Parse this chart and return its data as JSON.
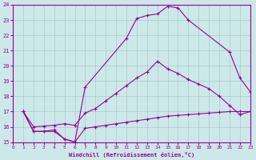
{
  "xlabel": "Windchill (Refroidissement éolien,°C)",
  "bg_color": "#cce8e8",
  "line_color": "#990099",
  "grid_color": "#aacccc",
  "xlim": [
    0,
    23
  ],
  "ylim": [
    15,
    24
  ],
  "xticks": [
    0,
    1,
    2,
    3,
    4,
    5,
    6,
    7,
    8,
    9,
    10,
    11,
    12,
    13,
    14,
    15,
    16,
    17,
    18,
    19,
    20,
    21,
    22,
    23
  ],
  "yticks": [
    15,
    16,
    17,
    18,
    19,
    20,
    21,
    22,
    23,
    24
  ],
  "line1_x": [
    1,
    2,
    3,
    4,
    5,
    6,
    7,
    11,
    12,
    13,
    14,
    15,
    16,
    17,
    21,
    22,
    23
  ],
  "line1_y": [
    17.0,
    15.7,
    15.7,
    15.8,
    15.2,
    15.0,
    18.6,
    21.8,
    23.1,
    23.3,
    23.4,
    23.9,
    23.8,
    23.0,
    20.9,
    19.2,
    18.3
  ],
  "line2_x": [
    1,
    2,
    3,
    4,
    5,
    6,
    7,
    8,
    9,
    10,
    11,
    12,
    13,
    14,
    15,
    16,
    17,
    18,
    19,
    20,
    21,
    22,
    23
  ],
  "line2_y": [
    17.0,
    16.0,
    16.05,
    16.1,
    16.2,
    16.1,
    16.9,
    17.2,
    17.7,
    18.2,
    18.7,
    19.2,
    19.6,
    20.3,
    19.8,
    19.5,
    19.1,
    18.8,
    18.5,
    18.0,
    17.4,
    16.8,
    17.0
  ],
  "line3_x": [
    1,
    2,
    3,
    4,
    5,
    6,
    7,
    8,
    9,
    10,
    11,
    12,
    13,
    14,
    15,
    16,
    17,
    18,
    19,
    20,
    21,
    22,
    23
  ],
  "line3_y": [
    17.0,
    15.7,
    15.7,
    15.7,
    15.2,
    15.0,
    15.9,
    16.0,
    16.1,
    16.2,
    16.3,
    16.4,
    16.5,
    16.6,
    16.7,
    16.75,
    16.8,
    16.85,
    16.9,
    16.95,
    17.0,
    17.0,
    17.0
  ]
}
